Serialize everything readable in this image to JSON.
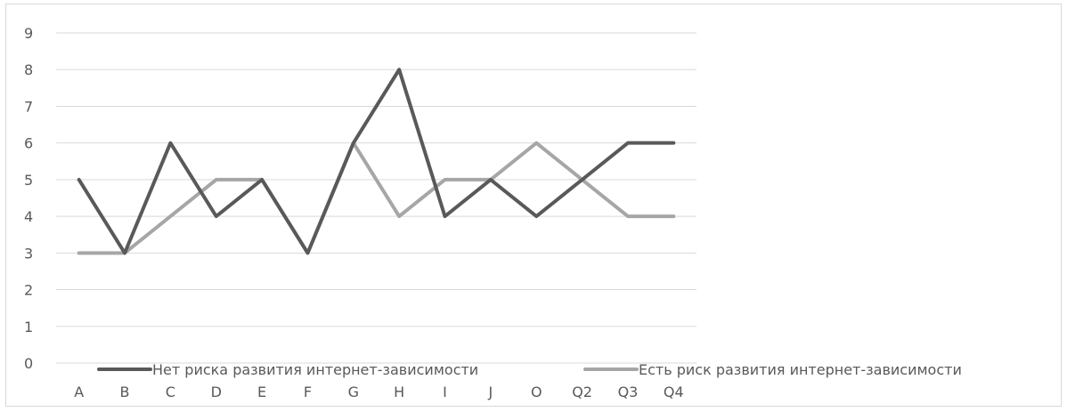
{
  "chart_data": {
    "type": "line",
    "categories": [
      "A",
      "B",
      "C",
      "D",
      "E",
      "F",
      "G",
      "H",
      "I",
      "J",
      "O",
      "Q2",
      "Q3",
      "Q4"
    ],
    "series": [
      {
        "name": "Нет риска развития интернет-зависимости",
        "values": [
          5,
          3,
          6,
          4,
          5,
          3,
          6,
          8,
          4,
          5,
          4,
          5,
          6,
          6
        ],
        "color": "#595959"
      },
      {
        "name": "Есть риск развития интернет-зависимости",
        "values": [
          3,
          3,
          4,
          5,
          5,
          3,
          6,
          4,
          5,
          5,
          6,
          5,
          4,
          4
        ],
        "color": "#a6a6a6"
      }
    ],
    "ylim": [
      0,
      9
    ],
    "yticks": [
      0,
      1,
      2,
      3,
      4,
      5,
      6,
      7,
      8,
      9
    ],
    "grid": true,
    "gridColor": "#d9d9d9",
    "legend": "bottom",
    "title": "",
    "xlabel": "",
    "ylabel": ""
  }
}
